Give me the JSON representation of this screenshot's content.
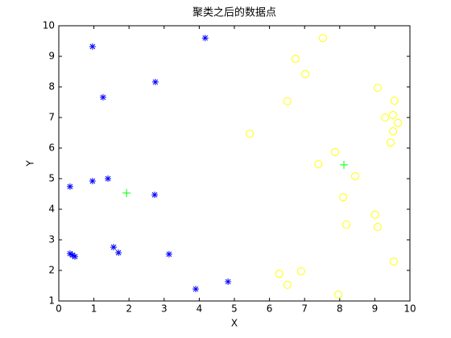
{
  "chart_data": {
    "type": "scatter",
    "title": "聚类之后的数据点",
    "x_label": "X",
    "y_label": "Y",
    "xlim": [
      0,
      10
    ],
    "ylim": [
      1,
      10
    ],
    "xticks": [
      0,
      1,
      2,
      3,
      4,
      5,
      6,
      7,
      8,
      9,
      10
    ],
    "yticks": [
      1,
      2,
      3,
      4,
      5,
      6,
      7,
      8,
      9,
      10
    ],
    "series": [
      {
        "marker": "star",
        "color": "#0000ff",
        "x": [
          0.96,
          4.17,
          1.26,
          2.75,
          0.32,
          0.96,
          1.4,
          2.73,
          0.32,
          0.39,
          0.46,
          1.56,
          1.7,
          3.14,
          3.9,
          4.82
        ],
        "values": [
          9.32,
          9.6,
          7.66,
          8.16,
          4.74,
          4.92,
          5.0,
          4.47,
          2.55,
          2.5,
          2.45,
          2.76,
          2.58,
          2.53,
          1.39,
          1.63
        ]
      },
      {
        "marker": "circle",
        "color": "#ffff00",
        "x": [
          7.52,
          6.74,
          7.02,
          6.51,
          5.44,
          9.08,
          9.56,
          9.29,
          9.52,
          9.66,
          9.52,
          9.45,
          7.87,
          7.39,
          8.44,
          8.1,
          9.01,
          9.08,
          8.19,
          9.54,
          6.28,
          6.9,
          6.51,
          7.96
        ],
        "values": [
          9.6,
          8.92,
          8.42,
          7.53,
          6.47,
          7.97,
          7.55,
          7.0,
          7.08,
          6.82,
          6.55,
          6.18,
          5.87,
          5.47,
          5.08,
          4.39,
          3.82,
          3.42,
          3.5,
          2.29,
          1.89,
          1.97,
          1.53,
          1.21
        ]
      },
      {
        "marker": "plus",
        "color": "#00ff00",
        "x": [
          1.93,
          8.12
        ],
        "values": [
          4.53,
          5.45
        ]
      }
    ]
  }
}
